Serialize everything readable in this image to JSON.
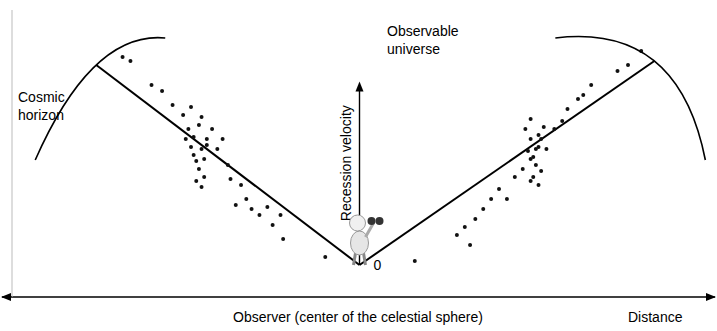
{
  "chart_data": {
    "type": "scatter",
    "xlabel": "Distance",
    "ylabel": "Recession velocity",
    "annotations": [
      "Observer (center of the celestial sphere)",
      "Observable universe",
      "Cosmic horizon"
    ],
    "xlim": [
      -13.2,
      13.2
    ],
    "ylim": [
      -1.6,
      12.75
    ],
    "yticks": [
      0
    ],
    "tick_labels": "y",
    "grid": false,
    "series": [
      {
        "type": "scatter",
        "color": "#111111",
        "x": [
          -9.0,
          -8.7,
          -7.9,
          -7.5,
          -7.1,
          -6.7,
          -6.4,
          -6.1,
          -6.0,
          -5.8,
          -5.6,
          -5.4,
          -5.2,
          -5.0,
          -4.9,
          -4.7,
          -4.5,
          -4.3,
          -4.1,
          -3.8,
          -3.5,
          -3.3,
          -3.0,
          -2.9,
          -1.3,
          -6.6,
          -6.4,
          -6.3,
          -6.2,
          -6.1,
          -6.0,
          -5.9,
          -5.9,
          -6.2,
          -6.5,
          -5.8,
          -6.3,
          -6.0,
          2.1,
          3.7,
          4.0,
          4.2,
          4.4,
          4.7,
          5.0,
          5.3,
          5.6,
          5.9,
          6.2,
          6.5,
          6.5,
          6.7,
          6.9,
          7.1,
          7.4,
          7.7,
          7.9,
          8.3,
          8.5,
          8.8,
          9.8,
          10.2,
          10.7,
          6.3,
          6.5,
          6.5,
          6.6,
          6.7,
          6.8,
          6.8,
          6.9,
          6.4,
          7.0,
          6.6,
          6.8
        ],
        "values": [
          10.4,
          10.2,
          9.0,
          8.7,
          8.0,
          7.5,
          7.9,
          7.0,
          7.4,
          6.3,
          6.8,
          5.8,
          6.3,
          5.0,
          4.3,
          3.0,
          4.0,
          3.3,
          2.8,
          2.5,
          2.9,
          2.0,
          2.5,
          1.3,
          0.4,
          6.3,
          5.9,
          5.5,
          5.2,
          4.8,
          5.8,
          4.4,
          5.3,
          4.2,
          6.8,
          6.0,
          6.4,
          3.9,
          0.2,
          1.5,
          1.9,
          1.0,
          2.3,
          2.8,
          3.3,
          3.8,
          3.3,
          4.4,
          4.8,
          4.2,
          5.3,
          5.8,
          6.3,
          5.8,
          6.8,
          7.2,
          7.8,
          8.3,
          8.5,
          9.0,
          9.7,
          10.0,
          10.7,
          6.8,
          6.3,
          7.3,
          5.4,
          5.0,
          6.5,
          5.9,
          4.7,
          5.7,
          6.9,
          4.4,
          4.0
        ]
      },
      {
        "type": "line",
        "color": "#000000",
        "x": [
          0,
          -10
        ],
        "values": [
          0,
          10
        ]
      },
      {
        "type": "line",
        "color": "#000000",
        "x": [
          0,
          11.2
        ],
        "values": [
          0,
          10.2
        ]
      }
    ]
  }
}
